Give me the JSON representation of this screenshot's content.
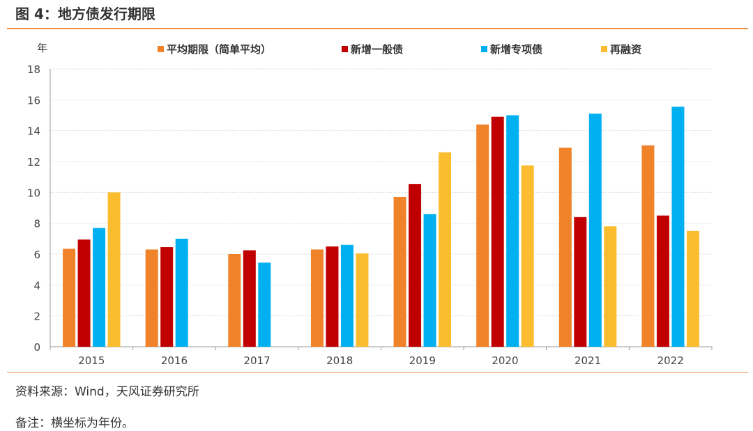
{
  "figure_title": "图 4：地方债发行期限",
  "source": "资料来源：Wind，天风证券研究所",
  "remark": "备注：横坐标为年份。",
  "colors": {
    "rule": "#ef8a3d",
    "grid": "#d9d9d9",
    "axis": "#999999"
  },
  "chart_data": {
    "type": "bar",
    "ylabel": "年",
    "ylim": [
      0,
      18
    ],
    "yticks": [
      0,
      2,
      4,
      6,
      8,
      10,
      12,
      14,
      16,
      18
    ],
    "grid": true,
    "legend_position": "top",
    "categories": [
      "2015",
      "2016",
      "2017",
      "2018",
      "2019",
      "2020",
      "2021",
      "2022"
    ],
    "series": [
      {
        "name": "平均期限（简单平均）",
        "color": "#f0822a",
        "values": [
          6.35,
          6.3,
          6.0,
          6.3,
          9.7,
          14.4,
          12.9,
          13.05
        ]
      },
      {
        "name": "新增一般债",
        "color": "#c00000",
        "values": [
          6.95,
          6.45,
          6.25,
          6.5,
          10.55,
          14.9,
          8.4,
          8.5
        ]
      },
      {
        "name": "新增专项债",
        "color": "#00b0f0",
        "values": [
          7.7,
          7.0,
          5.45,
          6.6,
          8.6,
          15.0,
          15.1,
          15.55
        ]
      },
      {
        "name": "再融资",
        "color": "#fbbd2f",
        "values": [
          10.0,
          null,
          null,
          6.05,
          12.6,
          11.75,
          7.8,
          7.5
        ]
      }
    ]
  }
}
